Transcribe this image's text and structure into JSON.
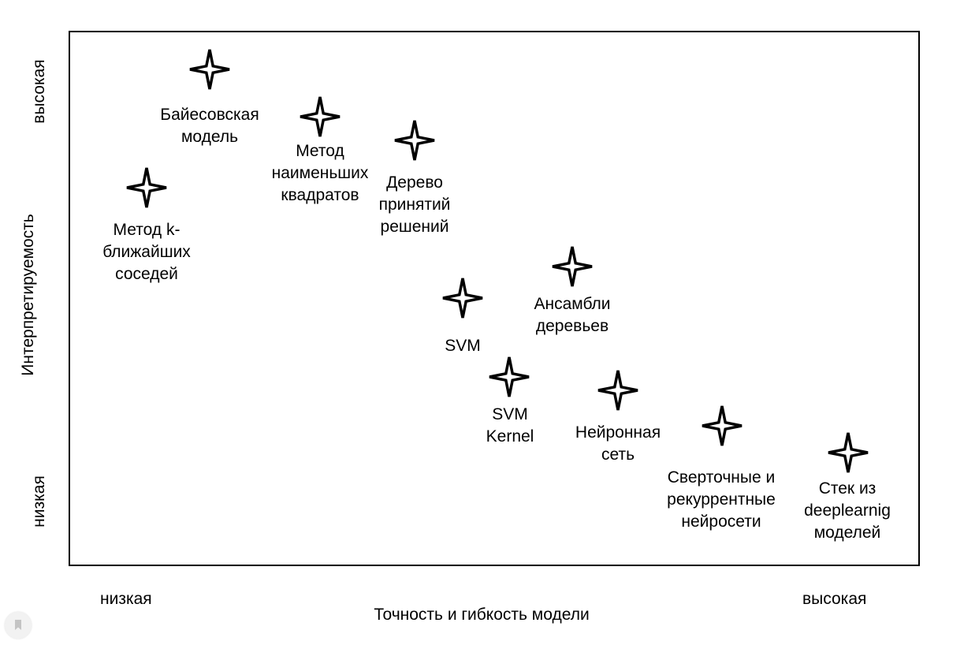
{
  "axes": {
    "x_title": "Точность и гибкость модели",
    "x_low": "низкая",
    "x_high": "высокая",
    "y_title": "Интерпретируемость",
    "y_low": "низкая",
    "y_high": "высокая"
  },
  "models": [
    {
      "id": "bayes",
      "label": "Байесовская\nмодель"
    },
    {
      "id": "knn",
      "label": "Метод k-\nближайших\nсоседей"
    },
    {
      "id": "least-squares",
      "label": "Метод\nнаименьших\nквадратов"
    },
    {
      "id": "decision-tree",
      "label": "Дерево\nпринятий\nрешений"
    },
    {
      "id": "svm",
      "label": "SVM"
    },
    {
      "id": "tree-ensembles",
      "label": "Ансамбли\nдеревьев"
    },
    {
      "id": "svm-kernel",
      "label": "SVM\nKernel"
    },
    {
      "id": "neural-net",
      "label": "Нейронная\nсеть"
    },
    {
      "id": "conv-rnn",
      "label": "Сверточные и\nрекуррентные\nнейросети"
    },
    {
      "id": "dl-stack",
      "label": "Стек из\ndeeplearnig\nмоделей"
    }
  ],
  "icons": {
    "marker": "four-point-star-icon",
    "badge": "bookmark-icon"
  },
  "colors": {
    "ink": "#000000",
    "background": "#ffffff"
  }
}
